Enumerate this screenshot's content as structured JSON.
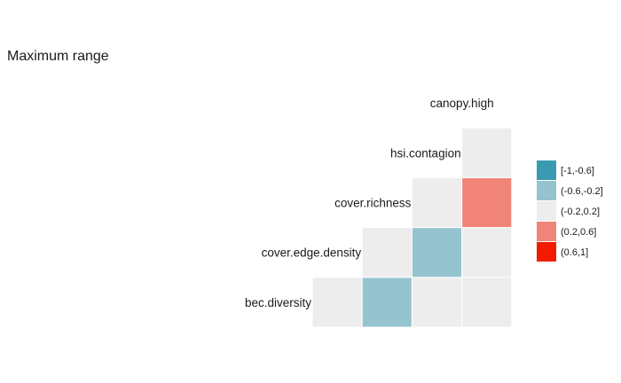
{
  "chart_data": {
    "type": "heatmap",
    "title": "Maximum range",
    "variables": [
      "bec.diversity",
      "cover.edge.density",
      "cover.richness",
      "hsi.contagion",
      "canopy.high"
    ],
    "cells": [
      {
        "row": "cover.edge.density",
        "col": "bec.diversity",
        "bin": "(-0.2,0.2]"
      },
      {
        "row": "cover.richness",
        "col": "bec.diversity",
        "bin": "(-0.6,-0.2]"
      },
      {
        "row": "cover.richness",
        "col": "cover.edge.density",
        "bin": "(-0.2,0.2]"
      },
      {
        "row": "hsi.contagion",
        "col": "bec.diversity",
        "bin": "(-0.2,0.2]"
      },
      {
        "row": "hsi.contagion",
        "col": "cover.edge.density",
        "bin": "(-0.6,-0.2]"
      },
      {
        "row": "hsi.contagion",
        "col": "cover.richness",
        "bin": "(-0.2,0.2]"
      },
      {
        "row": "canopy.high",
        "col": "bec.diversity",
        "bin": "(-0.2,0.2]"
      },
      {
        "row": "canopy.high",
        "col": "cover.edge.density",
        "bin": "(-0.2,0.2]"
      },
      {
        "row": "canopy.high",
        "col": "cover.richness",
        "bin": "(0.2,0.6]"
      },
      {
        "row": "canopy.high",
        "col": "hsi.contagion",
        "bin": "(-0.2,0.2]"
      }
    ],
    "legend": [
      {
        "label": "[-1,-0.6]",
        "color": "#3a9ab2"
      },
      {
        "label": "(-0.6,-0.2]",
        "color": "#95c4cf"
      },
      {
        "label": "(-0.2,0.2]",
        "color": "#ededed"
      },
      {
        "label": "(0.2,0.6]",
        "color": "#f08478"
      },
      {
        "label": "(0.6,1]",
        "color": "#f21a00"
      }
    ],
    "legend_position": "right",
    "grid": false
  }
}
